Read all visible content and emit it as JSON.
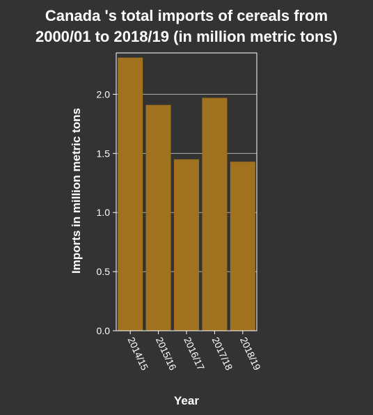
{
  "chart_data": {
    "type": "bar",
    "title_lines": [
      "Canada 's total imports of cereals from",
      "2000/01 to 2018/19 (in million metric tons)"
    ],
    "xlabel": "Year",
    "ylabel": "Imports in million metric tons",
    "categories": [
      "2014/15",
      "2015/16",
      "2016/17",
      "2017/18",
      "2018/19"
    ],
    "values": [
      2.31,
      1.91,
      1.45,
      1.97,
      1.43
    ],
    "ylim": [
      0,
      2.35
    ],
    "yticks": [
      0.0,
      0.5,
      1.0,
      1.5,
      2.0
    ],
    "ytick_labels": [
      "0.0",
      "0.5",
      "1.0",
      "1.5",
      "2.0"
    ],
    "grid": true,
    "colors": {
      "background": "#333333",
      "bar": "#a0711e",
      "grid": "#b0b0b0",
      "text": "#ffffff"
    }
  }
}
